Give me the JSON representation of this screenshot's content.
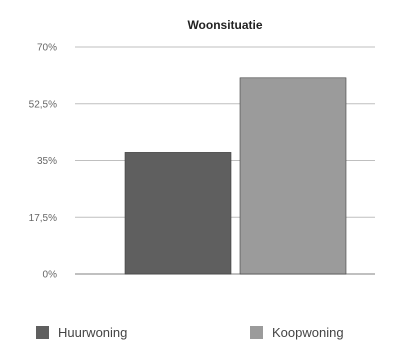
{
  "chart_data": {
    "type": "bar",
    "title": "Woonsituatie",
    "categories": [
      "Huurwoning",
      "Koopwoning"
    ],
    "series": [
      {
        "name": "Huurwoning",
        "values": [
          37.5,
          null
        ],
        "color": "#5f5f5f"
      },
      {
        "name": "Koopwoning",
        "values": [
          null,
          60.5
        ],
        "color": "#9b9b9b"
      }
    ],
    "ylim": [
      0,
      70
    ],
    "yticks": [
      "0%",
      "17,5%",
      "35%",
      "52,5%",
      "70%"
    ],
    "ytick_values": [
      0,
      17.5,
      35,
      52.5,
      70
    ],
    "grid": true,
    "legend_position": "bottom"
  }
}
